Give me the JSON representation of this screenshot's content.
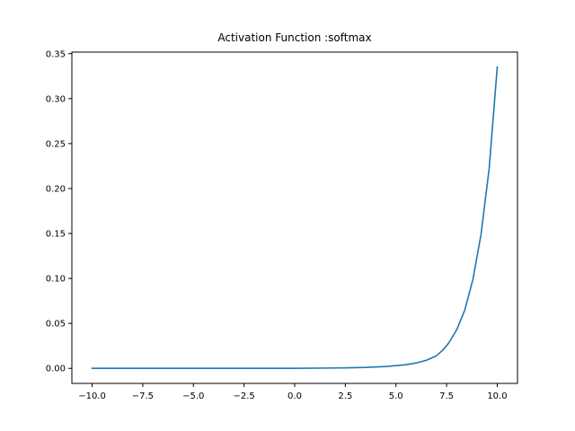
{
  "chart_data": {
    "type": "line",
    "title": "Activation Function :softmax",
    "xlabel": "",
    "ylabel": "",
    "xlim": [
      -10.0,
      10.0
    ],
    "ylim": [
      0.0,
      0.35
    ],
    "xticks": [
      -10.0,
      -7.5,
      -5.0,
      -2.5,
      0.0,
      2.5,
      5.0,
      7.5,
      10.0
    ],
    "xtick_labels": [
      "−10.0",
      "−7.5",
      "−5.0",
      "−2.5",
      "0.0",
      "2.5",
      "5.0",
      "7.5",
      "10.0"
    ],
    "yticks": [
      0.0,
      0.05,
      0.1,
      0.15,
      0.2,
      0.25,
      0.3,
      0.35
    ],
    "ytick_labels": [
      "0.00",
      "0.05",
      "0.10",
      "0.15",
      "0.20",
      "0.25",
      "0.30",
      "0.35"
    ],
    "grid": false,
    "legend": false,
    "series": [
      {
        "color": "#1f77b4",
        "x": [
          -10.0,
          -5.0,
          0.0,
          2.5,
          3.5,
          4.5,
          5.0,
          5.5,
          6.0,
          6.5,
          7.0,
          7.3,
          7.6,
          8.0,
          8.4,
          8.8,
          9.2,
          9.6,
          10.0
        ],
        "y": [
          0.0,
          0.0,
          0.0,
          0.0005,
          0.001,
          0.002,
          0.003,
          0.004,
          0.006,
          0.009,
          0.014,
          0.02,
          0.028,
          0.043,
          0.065,
          0.099,
          0.149,
          0.222,
          0.335
        ]
      }
    ]
  }
}
